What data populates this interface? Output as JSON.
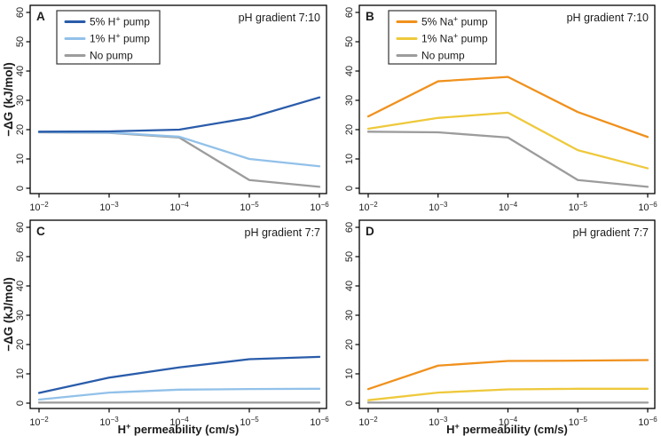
{
  "figure": {
    "background": "#ffffff",
    "text_color": "#1c1c1c",
    "frame_color": "#000000",
    "ylabel": "−ΔG (kJ/mol)",
    "xlabel": "H^+ permeability (cm/s)"
  },
  "chart_data": {
    "type": "line",
    "x_axis": {
      "label": "H^+ permeability (cm/s)",
      "tick_labels": [
        "10^−2",
        "10^−3",
        "10^−4",
        "10^−5",
        "10^−6"
      ],
      "scale": "log, decreasing left to right"
    },
    "y_axis": {
      "label": "−ΔG (kJ/mol)",
      "ticks": [
        0,
        10,
        20,
        30,
        40,
        50,
        60
      ],
      "range": [
        0,
        60
      ]
    },
    "grid": "off",
    "legend_position": "top-left inset box",
    "panels": [
      {
        "id": "A",
        "letter": "A",
        "title": "pH gradient 7:10",
        "show_legend": true,
        "series": [
          {
            "name": "5% H^+ pump",
            "color": "#2a5caa",
            "values": [
              19.3,
              19.4,
              20.0,
              24.0,
              31.0
            ]
          },
          {
            "name": "1% H^+ pump",
            "color": "#92c1e9",
            "values": [
              19.2,
              19.0,
              17.6,
              10.0,
              7.5
            ]
          },
          {
            "name": "No pump",
            "color": "#9c9c9c",
            "values": [
              19.1,
              18.9,
              17.3,
              2.8,
              0.5
            ]
          }
        ]
      },
      {
        "id": "B",
        "letter": "B",
        "title": "pH gradient 7:10",
        "show_legend": true,
        "series": [
          {
            "name": "5% Na^+ pump",
            "color": "#f0911d",
            "values": [
              24.5,
              36.5,
              38.0,
              26.0,
              17.5
            ]
          },
          {
            "name": "1% Na^+ pump",
            "color": "#eec93c",
            "values": [
              20.3,
              24.0,
              25.8,
              13.0,
              6.8
            ]
          },
          {
            "name": "No pump",
            "color": "#9c9c9c",
            "values": [
              19.3,
              19.1,
              17.3,
              2.8,
              0.5
            ]
          }
        ]
      },
      {
        "id": "C",
        "letter": "C",
        "title": "pH gradient 7:7",
        "show_legend": false,
        "series": [
          {
            "name": "5% H^+ pump",
            "color": "#2a5caa",
            "values": [
              3.5,
              8.7,
              12.2,
              15.0,
              15.8
            ]
          },
          {
            "name": "1% H^+ pump",
            "color": "#92c1e9",
            "values": [
              1.2,
              3.6,
              4.6,
              4.8,
              4.9
            ]
          },
          {
            "name": "No pump",
            "color": "#9c9c9c",
            "values": [
              0.2,
              0.2,
              0.2,
              0.2,
              0.2
            ]
          }
        ]
      },
      {
        "id": "D",
        "letter": "D",
        "title": "pH gradient 7:7",
        "show_legend": false,
        "series": [
          {
            "name": "5% Na^+ pump",
            "color": "#f0911d",
            "values": [
              4.8,
              12.8,
              14.4,
              14.5,
              14.7
            ]
          },
          {
            "name": "1% Na^+ pump",
            "color": "#eec93c",
            "values": [
              1.0,
              3.6,
              4.7,
              4.9,
              4.9
            ]
          },
          {
            "name": "No pump",
            "color": "#9c9c9c",
            "values": [
              0.2,
              0.2,
              0.2,
              0.2,
              0.2
            ]
          }
        ]
      }
    ]
  }
}
